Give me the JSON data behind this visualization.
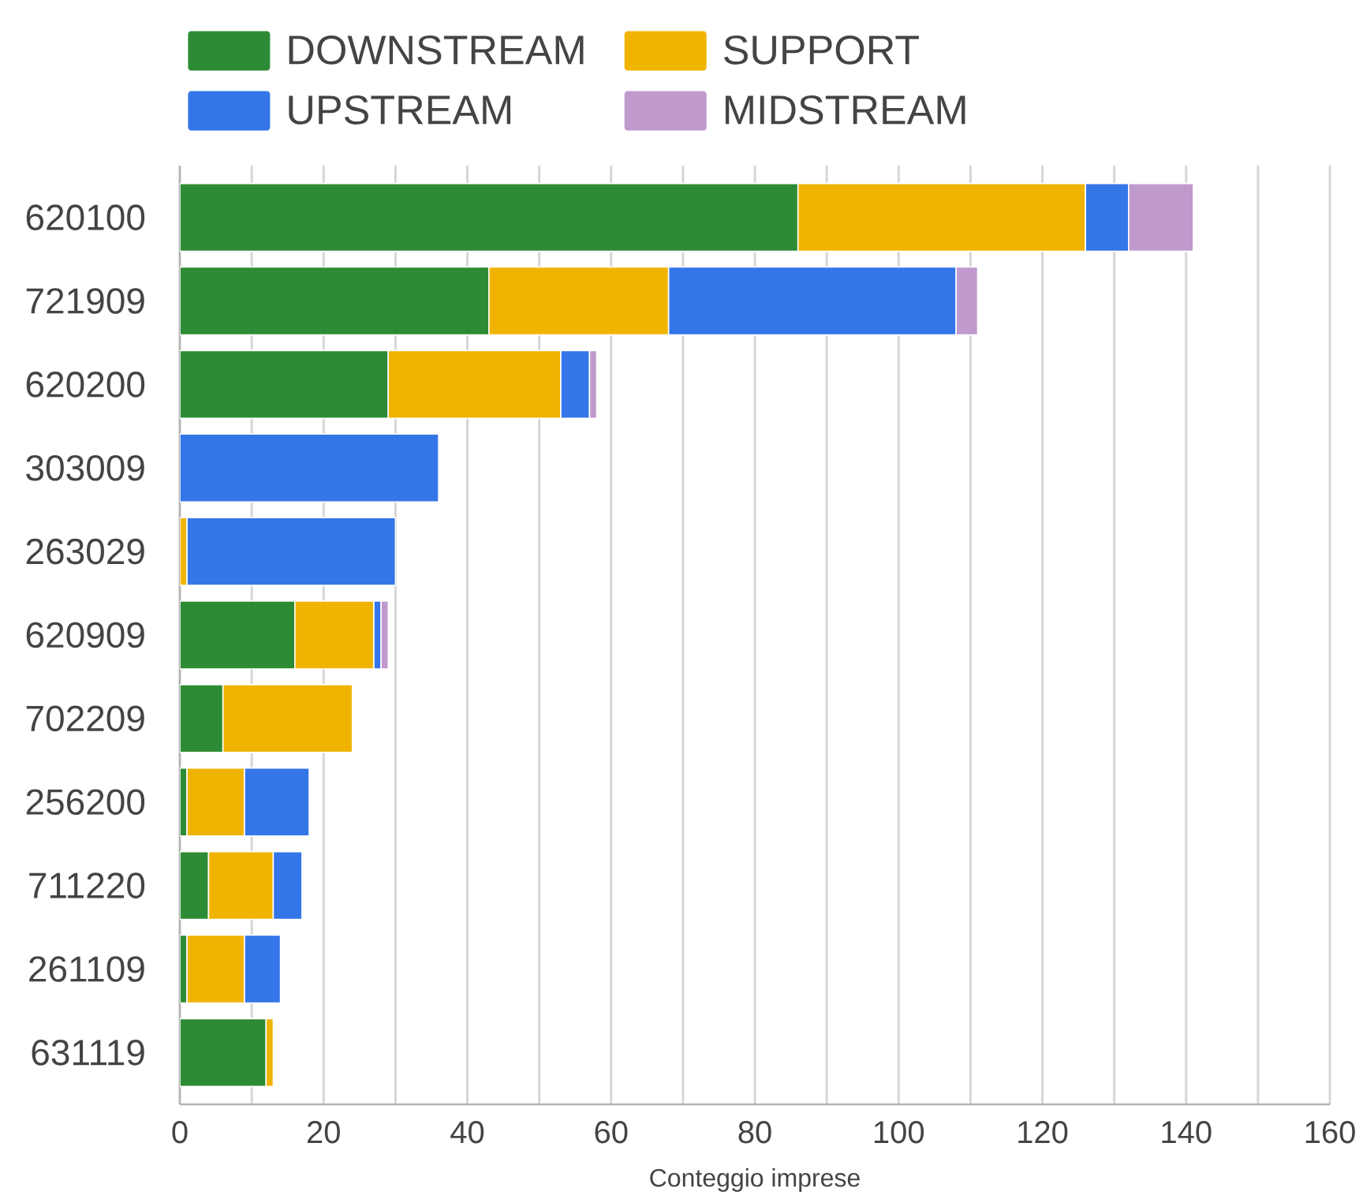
{
  "chart_data": {
    "type": "bar",
    "orientation": "horizontal",
    "stacked": true,
    "categories": [
      "620100",
      "721909",
      "620200",
      "303009",
      "263029",
      "620909",
      "702209",
      "256200",
      "711220",
      "261109",
      "631119"
    ],
    "series": [
      {
        "name": "DOWNSTREAM",
        "color": "#2e8b35",
        "values": [
          86,
          43,
          29,
          null,
          null,
          16,
          6,
          1,
          4,
          1,
          12
        ]
      },
      {
        "name": "SUPPORT",
        "color": "#f0b400",
        "values": [
          40,
          25,
          24,
          null,
          1,
          11,
          18,
          8,
          9,
          8,
          1
        ]
      },
      {
        "name": "UPSTREAM",
        "color": "#3476e8",
        "values": [
          6,
          40,
          4,
          36,
          29,
          1,
          null,
          9,
          4,
          5,
          null
        ]
      },
      {
        "name": "MIDSTREAM",
        "color": "#c09acd",
        "values": [
          9,
          3,
          1,
          null,
          null,
          1,
          null,
          null,
          null,
          null,
          null
        ]
      }
    ],
    "xlabel": "Conteggio imprese",
    "xlim": [
      0,
      160
    ],
    "xticks": [
      0,
      {
        "value": 10,
        "label": null
      },
      20,
      {
        "value": 30,
        "label": null
      },
      40,
      {
        "value": 50,
        "label": null
      },
      60,
      {
        "value": 70,
        "label": null
      },
      80,
      {
        "value": 90,
        "label": null
      },
      100,
      {
        "value": 110,
        "label": null
      },
      120,
      {
        "value": 130,
        "label": null
      },
      140,
      {
        "value": 150,
        "label": null
      },
      160
    ],
    "grid": "x",
    "legend": "top left"
  }
}
